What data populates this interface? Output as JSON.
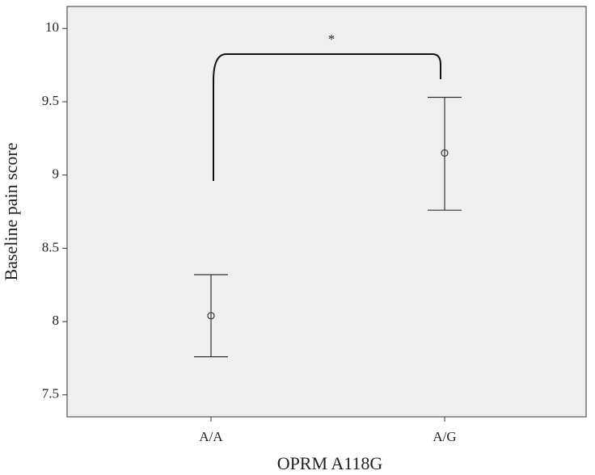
{
  "chart_data": {
    "type": "errorbar",
    "x_label": "OPRM A118G",
    "y_label": "Baseline pain score",
    "categories": [
      "A/A",
      "A/G"
    ],
    "series": [
      {
        "color": "#333333",
        "values": [
          8.04,
          9.15
        ],
        "lower": [
          7.76,
          8.76
        ],
        "upper": [
          8.32,
          9.53
        ]
      }
    ],
    "ylim": [
      7.35,
      10.15
    ],
    "yticks": [
      7.5,
      8,
      8.5,
      9,
      9.5,
      10
    ],
    "annotation": "*"
  }
}
